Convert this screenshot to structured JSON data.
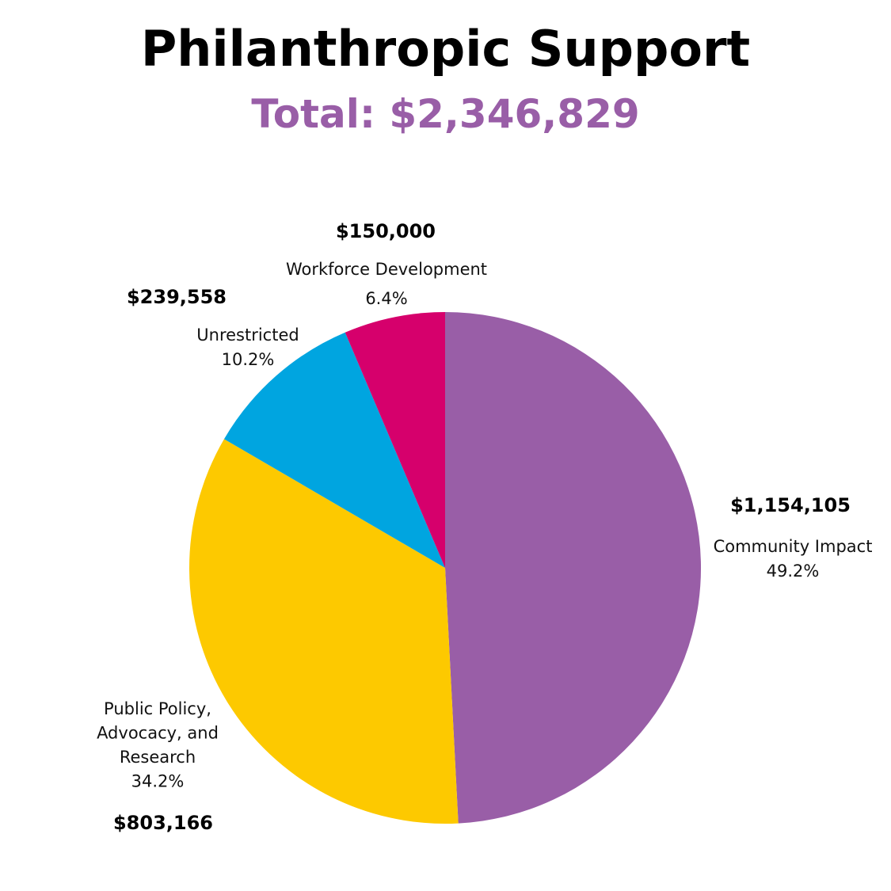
{
  "title": "Philanthropic Support",
  "subtitle": "Total: $2,346,829",
  "colors": {
    "subtitle": "#995ea7",
    "background": "#ffffff"
  },
  "chart_data": {
    "type": "pie",
    "title": "Philanthropic Support",
    "subtitle": "Total: $2,346,829",
    "start_angle_deg": 0,
    "direction": "clockwise",
    "slices": [
      {
        "key": "community",
        "label_lines": [
          "Community Impact"
        ],
        "value": 1154105,
        "value_label": "$1,154,105",
        "percent_label": "49.2%",
        "color": "#995ea7"
      },
      {
        "key": "policy",
        "label_lines": [
          "Public Policy,",
          "Advocacy, and",
          "Research"
        ],
        "value": 803166,
        "value_label": "$803,166",
        "percent_label": "34.2%",
        "color": "#fdc900"
      },
      {
        "key": "unrestricted",
        "label_lines": [
          "Unrestricted"
        ],
        "value": 239558,
        "value_label": "$239,558",
        "percent_label": "10.2%",
        "color": "#00a5e0"
      },
      {
        "key": "workforce",
        "label_lines": [
          "Workforce Development"
        ],
        "value": 150000,
        "value_label": "$150,000",
        "percent_label": "6.4%",
        "color": "#d6006c"
      }
    ]
  }
}
